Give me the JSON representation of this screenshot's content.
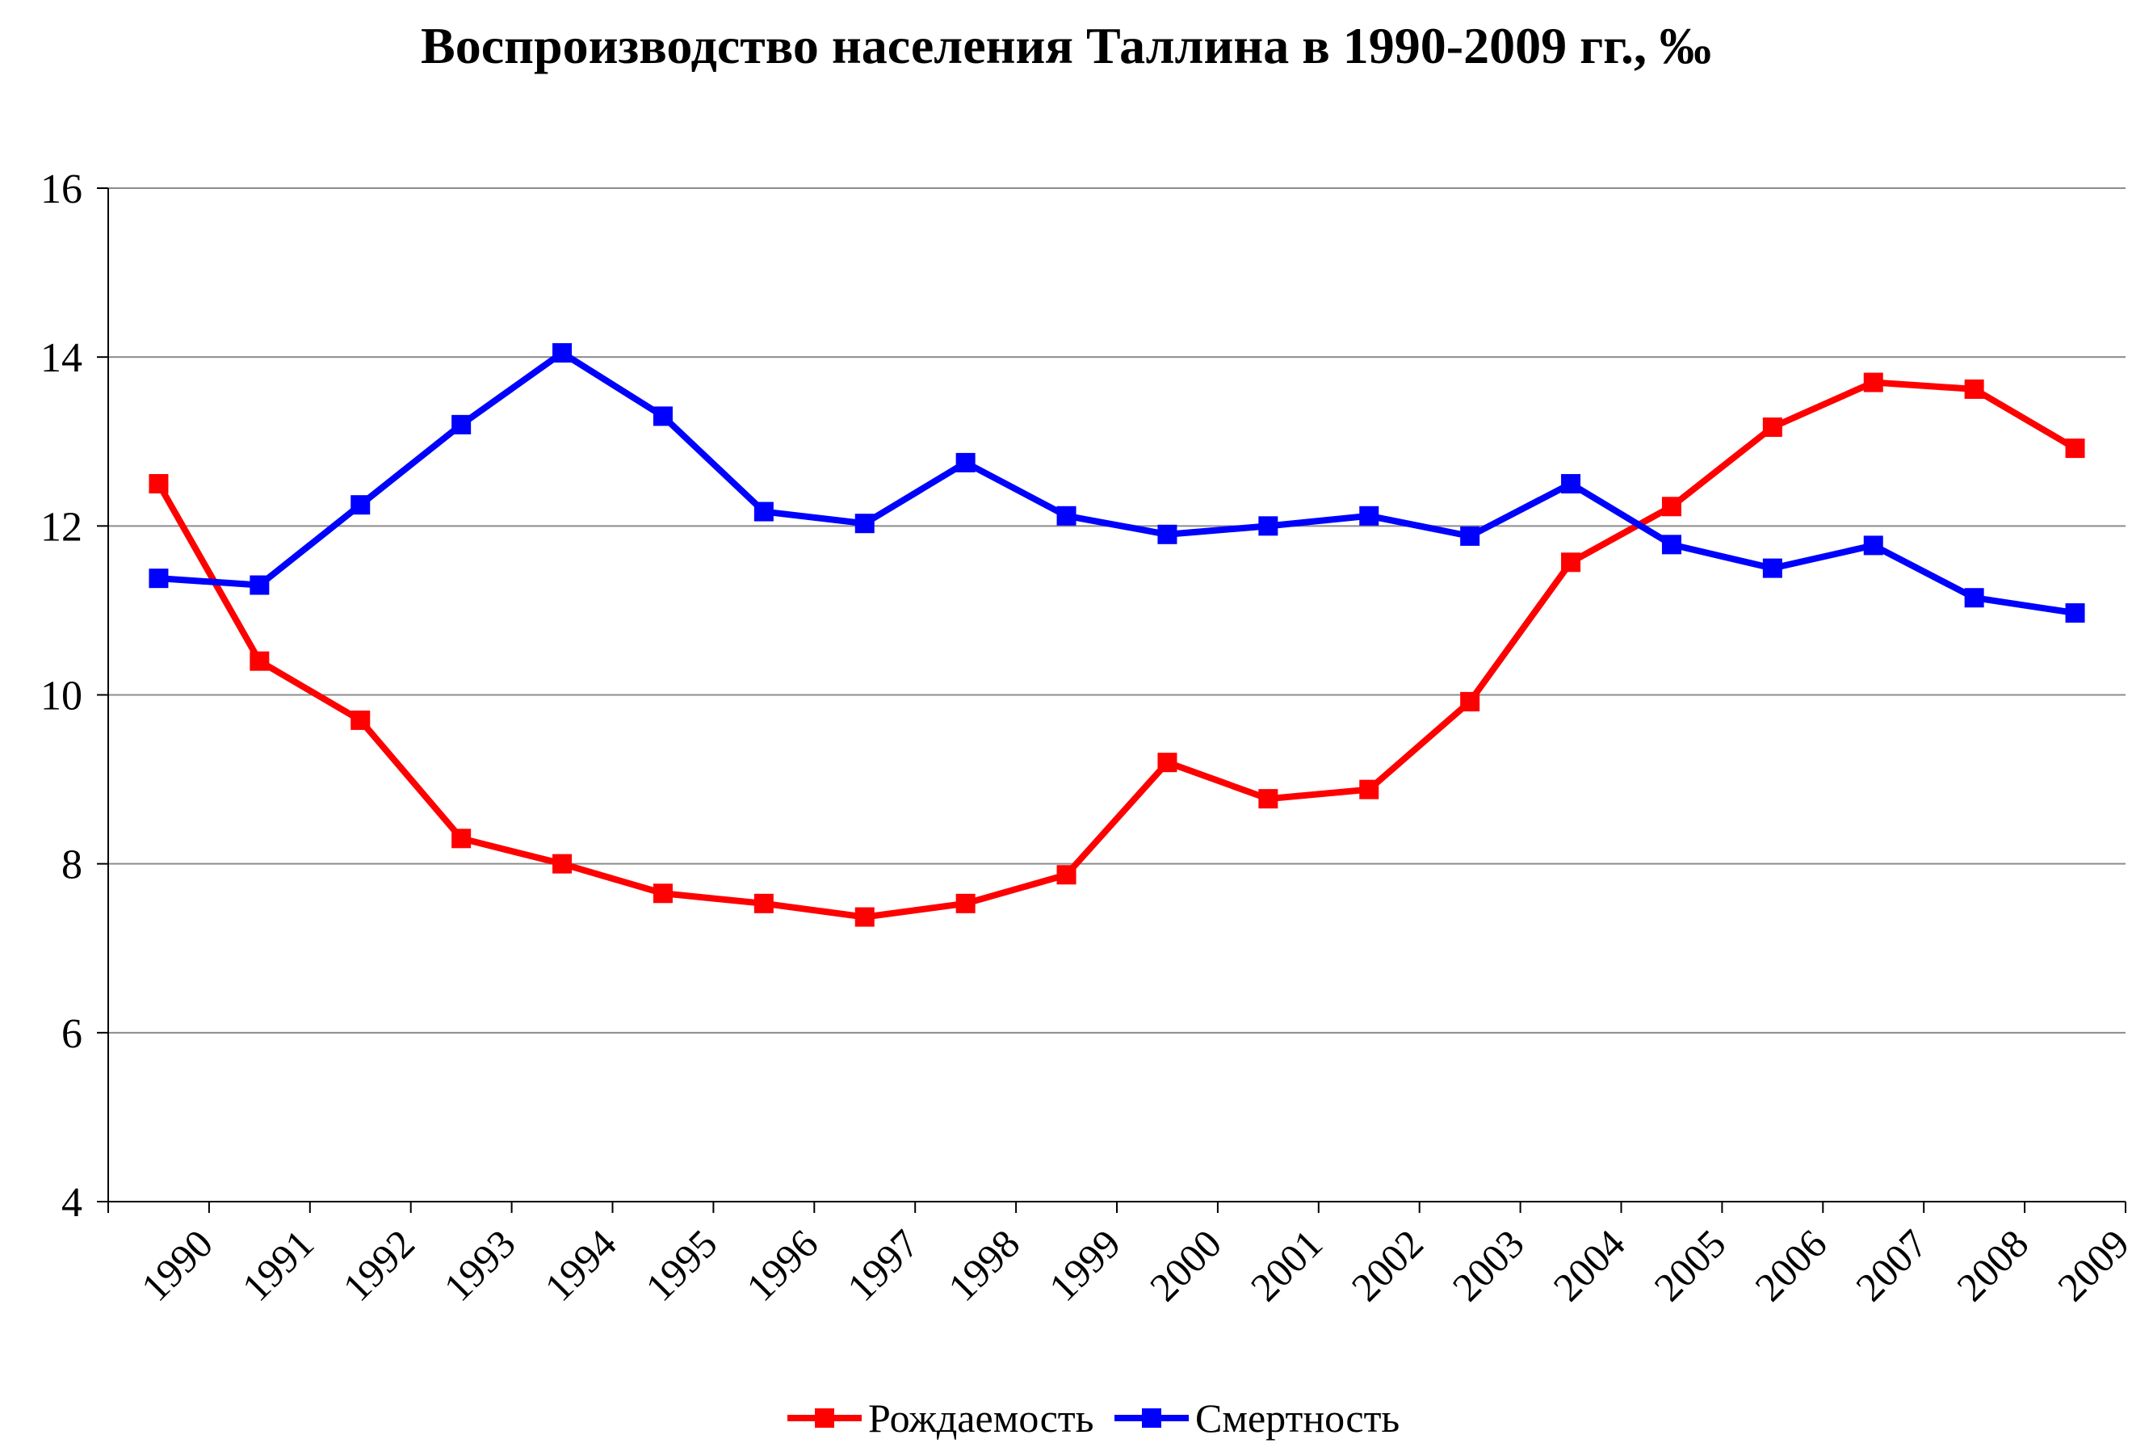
{
  "chart_data": {
    "type": "line",
    "title": "Воспроизводство населения Таллина в 1990-2009 гг., ‰",
    "xlabel": "",
    "ylabel": "",
    "categories": [
      "1990",
      "1991",
      "1992",
      "1993",
      "1994",
      "1995",
      "1996",
      "1997",
      "1998",
      "1999",
      "2000",
      "2001",
      "2002",
      "2003",
      "2004",
      "2005",
      "2006",
      "2007",
      "2008",
      "2009"
    ],
    "y_ticks": [
      "4",
      "6",
      "8",
      "10",
      "12",
      "14",
      "16"
    ],
    "ylim": [
      4,
      16
    ],
    "grid": true,
    "legend_position": "bottom",
    "series": [
      {
        "name": "Рождаемость",
        "color": "#ff0000",
        "values": [
          12.5,
          10.4,
          9.7,
          8.3,
          8.0,
          7.65,
          7.53,
          7.37,
          7.53,
          7.87,
          9.2,
          8.77,
          8.88,
          9.92,
          11.57,
          12.23,
          13.17,
          13.7,
          13.62,
          12.92
        ]
      },
      {
        "name": "Смертность",
        "color": "#0000ff",
        "values": [
          11.38,
          11.3,
          12.25,
          13.2,
          14.05,
          13.3,
          12.17,
          12.03,
          12.75,
          12.12,
          11.9,
          12.0,
          12.12,
          11.88,
          12.5,
          11.78,
          11.5,
          11.77,
          11.15,
          10.97
        ]
      }
    ]
  }
}
